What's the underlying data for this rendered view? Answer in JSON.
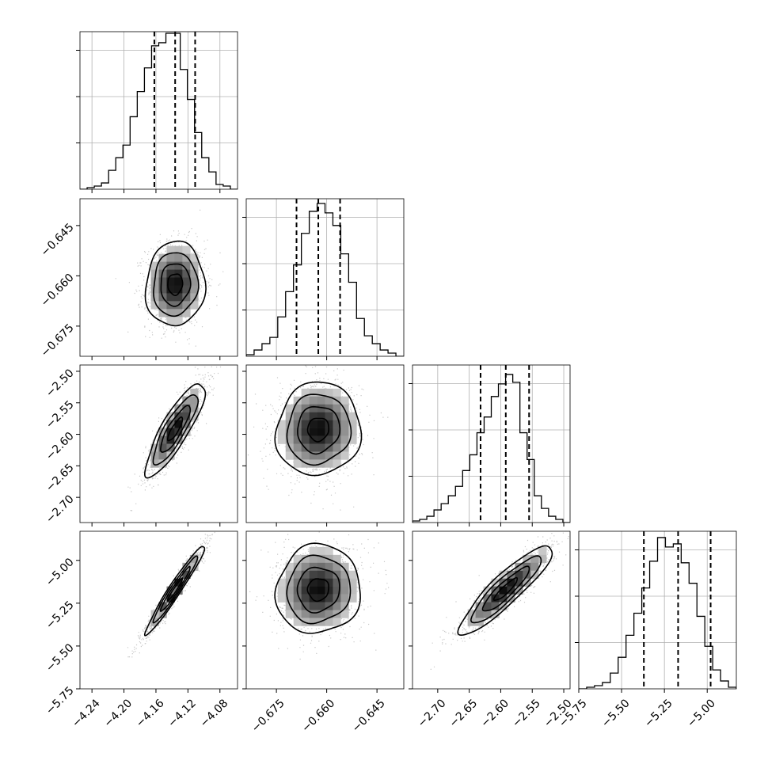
{
  "chart_data": {
    "type": "corner",
    "parameters": [
      {
        "range": [
          -4.255,
          -4.058
        ],
        "median": -4.136,
        "quantiles": [
          -4.162,
          -4.136,
          -4.111
        ],
        "ticks": [
          -4.24,
          -4.2,
          -4.16,
          -4.12,
          -4.08
        ],
        "tick_labels": [
          "−4.24",
          "−4.20",
          "−4.16",
          "−4.12",
          "−4.08"
        ],
        "sd": 0.0185,
        "hist": [
          0.0,
          0.01,
          0.02,
          0.04,
          0.12,
          0.2,
          0.28,
          0.46,
          0.62,
          0.77,
          0.91,
          0.93,
          0.99,
          0.99,
          0.76,
          0.57,
          0.36,
          0.2,
          0.11,
          0.03,
          0.02,
          0.0
        ]
      },
      {
        "range": [
          -0.684,
          -0.637
        ],
        "median": -0.6625,
        "quantiles": [
          -0.669,
          -0.6625,
          -0.656
        ],
        "ticks": [
          -0.675,
          -0.66,
          -0.645
        ],
        "tick_labels": [
          "−0.675",
          "−0.660",
          "−0.645"
        ],
        "sd": 0.0063,
        "hist": [
          0.01,
          0.04,
          0.08,
          0.12,
          0.25,
          0.41,
          0.58,
          0.78,
          0.92,
          0.97,
          0.91,
          0.83,
          0.65,
          0.47,
          0.24,
          0.13,
          0.08,
          0.04,
          0.02,
          0.0
        ]
      },
      {
        "range": [
          -2.74,
          -2.49
        ],
        "median": -2.592,
        "quantiles": [
          -2.632,
          -2.592,
          -2.555
        ],
        "ticks": [
          -2.7,
          -2.65,
          -2.6,
          -2.55,
          -2.5
        ],
        "tick_labels": [
          "−2.70",
          "−2.65",
          "−2.60",
          "−2.55",
          "−2.50"
        ],
        "y_ticks": [
          -2.5,
          -2.55,
          -2.6,
          -2.65,
          -2.7
        ],
        "y_tick_labels": [
          "−2.50",
          "−2.55",
          "−2.60",
          "−2.65",
          "−2.70"
        ],
        "sd": 0.037,
        "hist": [
          0.01,
          0.02,
          0.04,
          0.08,
          0.12,
          0.17,
          0.23,
          0.33,
          0.43,
          0.57,
          0.67,
          0.8,
          0.88,
          0.94,
          0.89,
          0.57,
          0.4,
          0.17,
          0.09,
          0.04,
          0.02,
          0.0
        ]
      },
      {
        "range": [
          -5.75,
          -4.83
        ],
        "median": -5.17,
        "quantiles": [
          -5.37,
          -5.17,
          -4.98
        ],
        "ticks": [
          -5.75,
          -5.5,
          -5.25,
          -5.0
        ],
        "tick_labels": [
          "−5.75",
          "−5.50",
          "−5.25",
          "−5.00"
        ],
        "y_ticks": [
          -5.0,
          -5.25,
          -5.5,
          -5.75
        ],
        "y_tick_labels": [
          "−5.00",
          "−5.25",
          "−5.50",
          "−5.75"
        ],
        "sd": 0.13,
        "hist": [
          0.0,
          0.01,
          0.02,
          0.04,
          0.1,
          0.2,
          0.34,
          0.48,
          0.64,
          0.81,
          0.96,
          0.9,
          0.92,
          0.8,
          0.67,
          0.46,
          0.27,
          0.12,
          0.05,
          0.01
        ]
      }
    ],
    "correlations": [
      [
        0,
        1,
        0.05
      ],
      [
        0,
        2,
        0.85
      ],
      [
        1,
        2,
        0.05
      ],
      [
        0,
        3,
        0.97
      ],
      [
        1,
        3,
        0.05
      ],
      [
        2,
        3,
        0.9
      ]
    ]
  }
}
